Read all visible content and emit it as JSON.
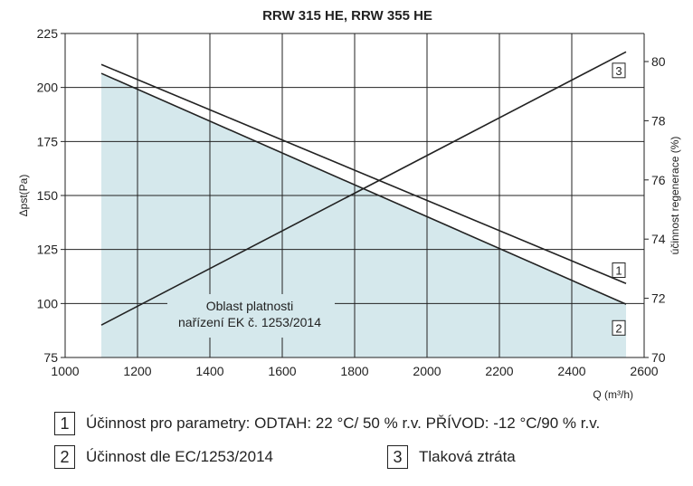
{
  "chart_data": {
    "type": "line",
    "title": "RRW 315 HE, RRW 355 HE",
    "xlabel": "Q (m³/h)",
    "ylabel": "Δpst(Pa)",
    "y2label": "účinnost regenerace (%)",
    "xlim": [
      1000,
      2600
    ],
    "ylim": [
      75,
      225
    ],
    "y2lim": [
      70,
      81
    ],
    "xticks": [
      1000,
      1200,
      1400,
      1600,
      1800,
      2000,
      2200,
      2400,
      2600
    ],
    "yticks": [
      75,
      100,
      125,
      150,
      175,
      200,
      225
    ],
    "y2ticks": [
      70,
      72,
      74,
      76,
      78,
      80
    ],
    "grid": true,
    "series": [
      {
        "name": "1",
        "axis": "right",
        "x": [
          1100,
          2550
        ],
        "y": [
          79.9,
          72.5
        ]
      },
      {
        "name": "2",
        "axis": "right",
        "x": [
          1100,
          2550
        ],
        "y": [
          79.6,
          71.8
        ]
      },
      {
        "name": "3",
        "axis": "left",
        "x": [
          1100,
          2550
        ],
        "y": [
          90,
          216.5
        ]
      }
    ],
    "shaded_region": {
      "label_line1": "Oblast platnosti",
      "label_line2": "nařízení EK č. 1253/2014",
      "x": [
        1100,
        2550
      ],
      "under_series": "2"
    },
    "colors": {
      "fill": "#d5e8ec",
      "line": "#222222"
    }
  },
  "legend": [
    {
      "num": "1",
      "text": "Účinnost pro parametry: ODTAH: 22 °C/ 50 % r.v. PŘÍVOD: -12 °C/90 % r.v."
    },
    {
      "num": "2",
      "text": "Účinnost dle EC/1253/2014"
    },
    {
      "num": "3",
      "text": "Tlaková ztráta"
    }
  ]
}
